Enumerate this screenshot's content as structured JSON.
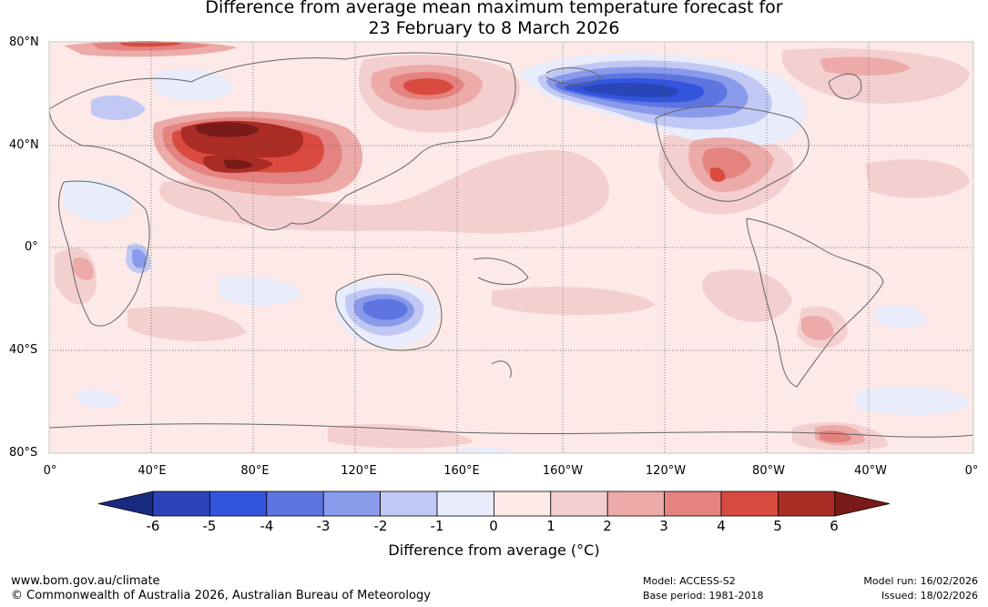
{
  "title": {
    "line1": "Difference from average mean maximum temperature forecast for",
    "line2": "23 February to 8 March 2026"
  },
  "map": {
    "lat_labels": [
      "80°N",
      "40°N",
      "0°",
      "40°S",
      "80°S"
    ],
    "lon_labels": [
      "0°",
      "40°E",
      "80°E",
      "120°E",
      "160°E",
      "160°W",
      "120°W",
      "80°W",
      "40°W",
      "0°"
    ]
  },
  "colorbar": {
    "label": "Difference from average (°C)",
    "ticks": [
      "-6",
      "-5",
      "-4",
      "-3",
      "-2",
      "-1",
      "0",
      "1",
      "2",
      "3",
      "4",
      "5",
      "6"
    ],
    "colors": [
      "#1a2a80",
      "#2a45b8",
      "#3355dd",
      "#5e75e0",
      "#8a9aeb",
      "#c0c8f3",
      "#e8ecfb",
      "#fce9e8",
      "#f4cfcf",
      "#ecaaa8",
      "#e48380",
      "#d94a3f",
      "#ab2b25",
      "#7a1a18"
    ]
  },
  "footer": {
    "website": "www.bom.gov.au/climate",
    "copyright": "© Commonwealth of Australia 2026, Australian Bureau of Meteorology",
    "model": "Model: ACCESS-S2",
    "base_period": "Base period: 1981-2018",
    "model_run": "Model run: 16/02/2026",
    "issued": "Issued: 18/02/2026"
  }
}
